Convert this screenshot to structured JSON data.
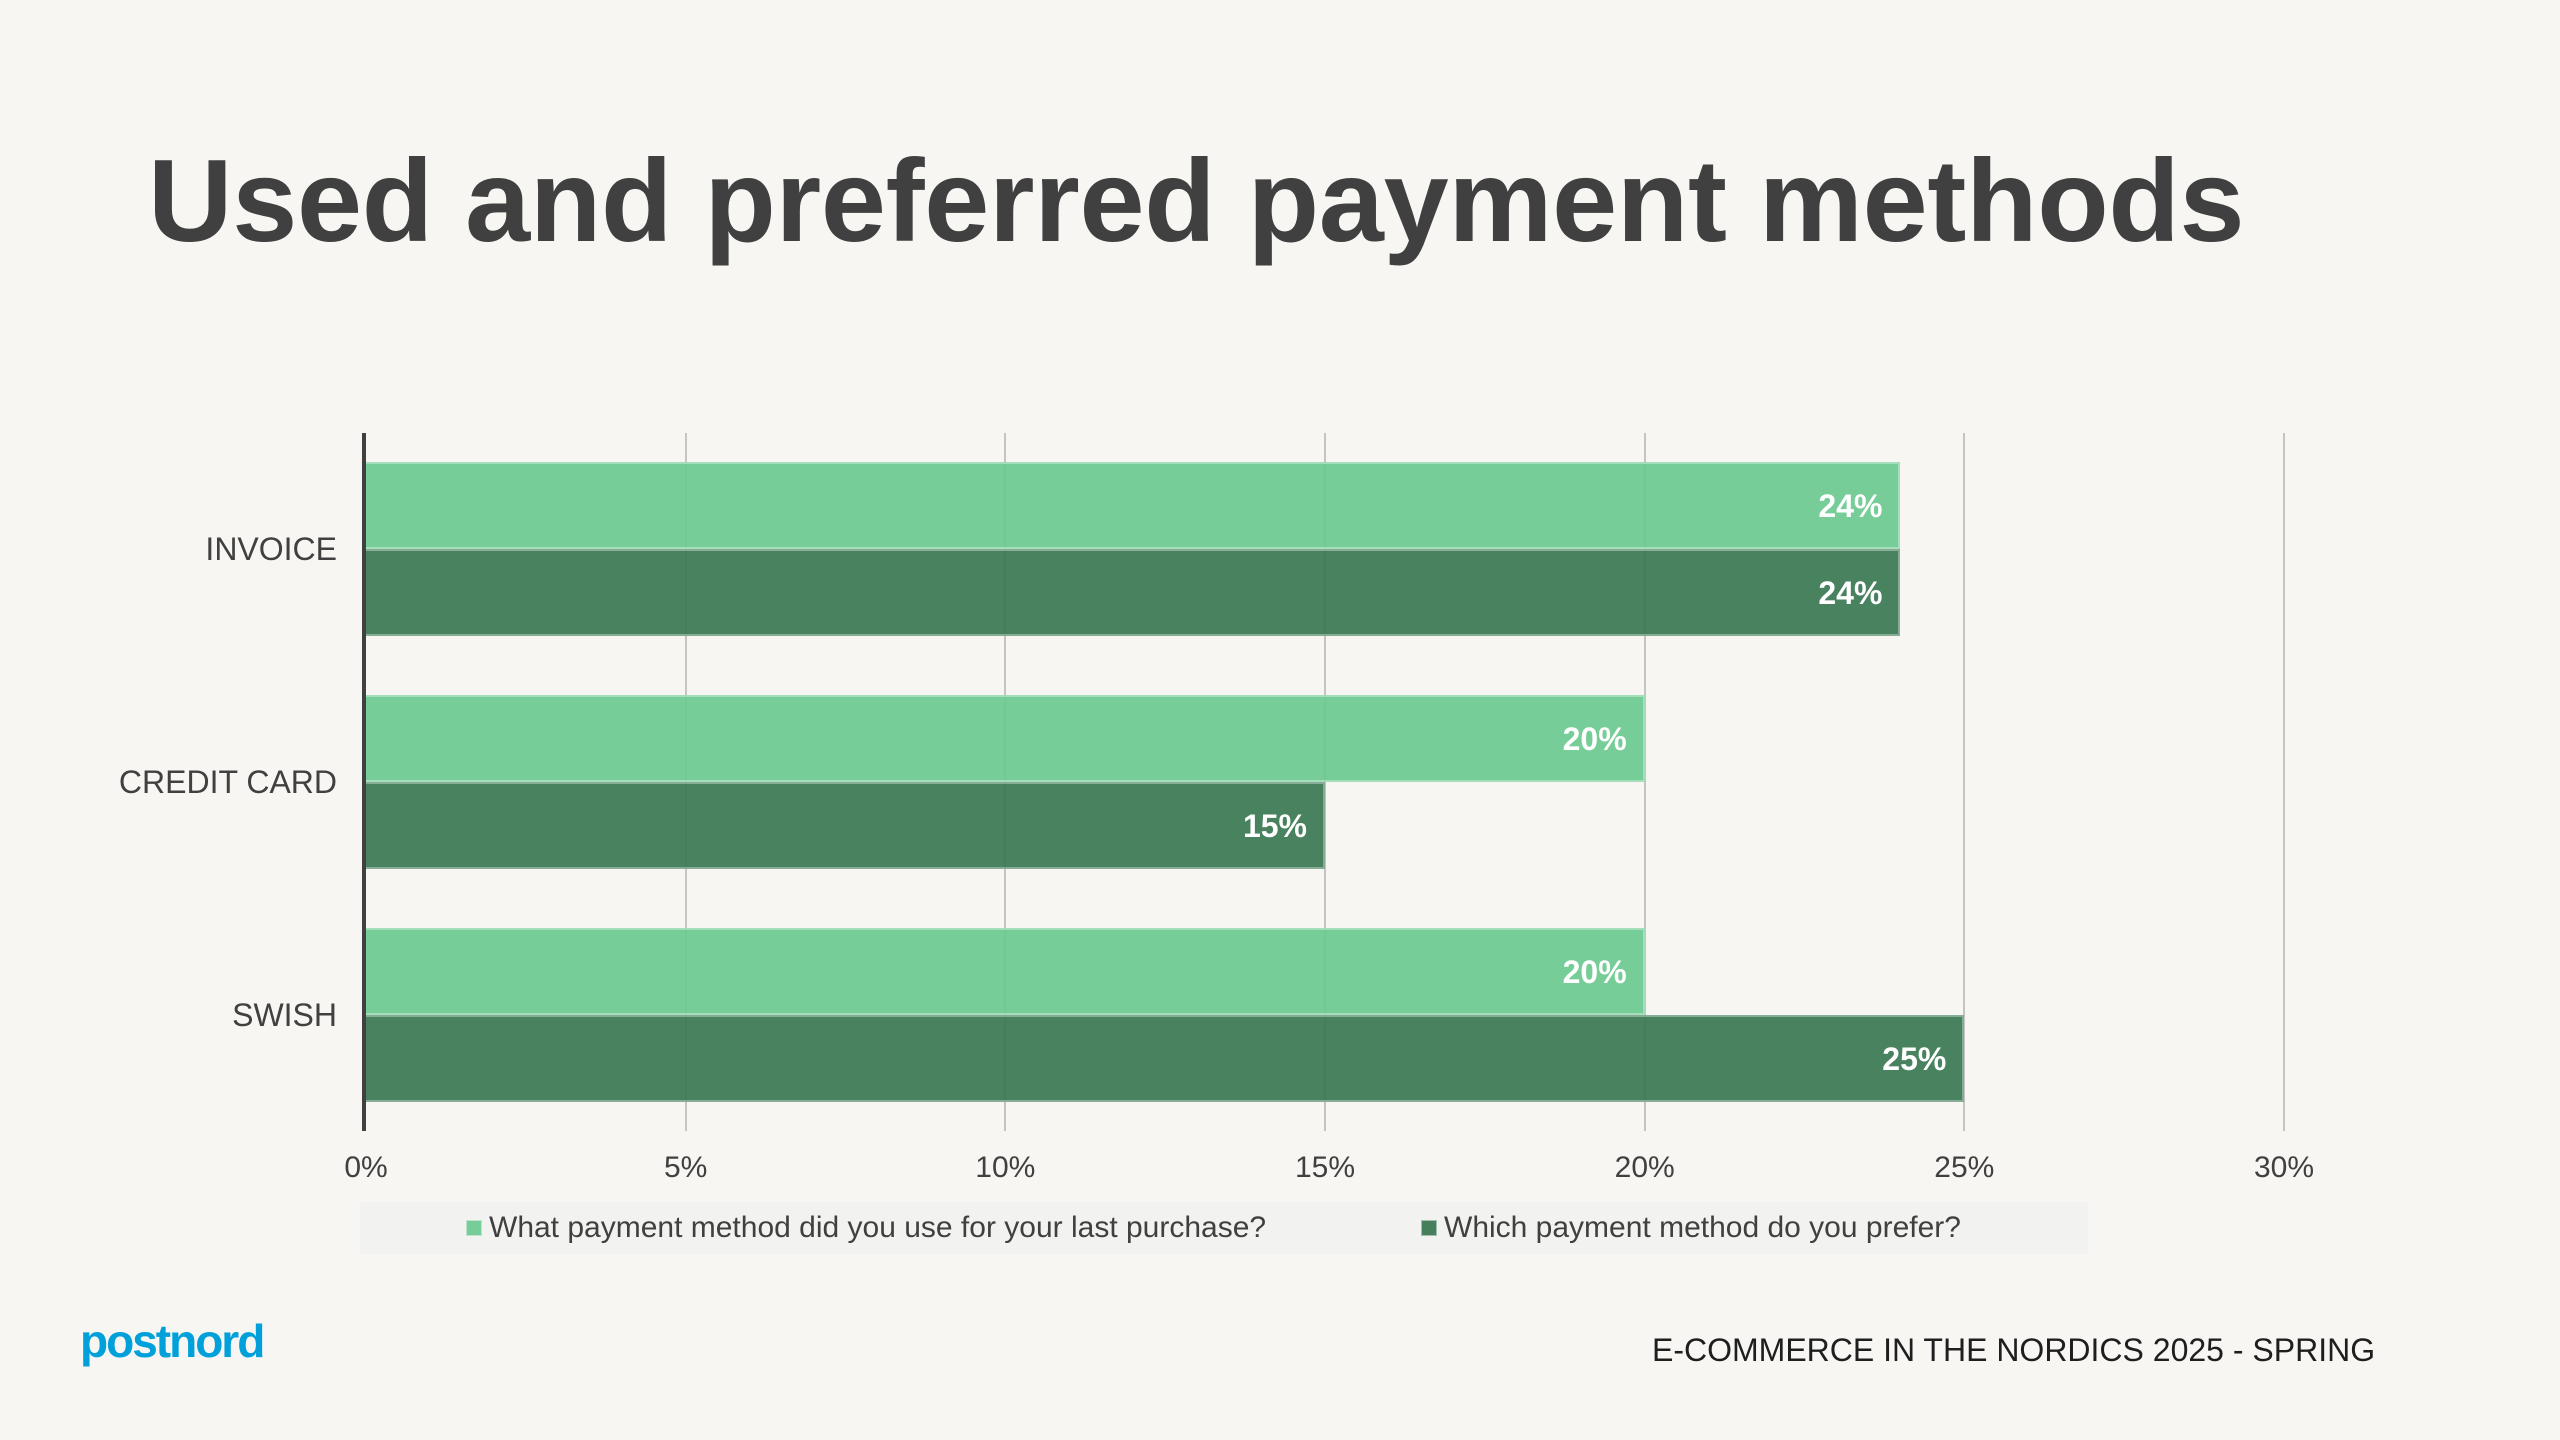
{
  "slide": {
    "title": "Used and preferred payment methods",
    "footer": "E-COMMERCE IN THE NORDICS 2025 - SPRING",
    "logo_text": "postnord",
    "colors": {
      "background": "#F7F6F3",
      "text": "#404040",
      "logo": "#00A0DA",
      "series_light": "#77CD97",
      "series_dark": "#467F5C"
    }
  },
  "chart_data": {
    "type": "bar",
    "orientation": "horizontal",
    "title": "Used and preferred payment methods",
    "xlabel": "",
    "ylabel": "",
    "categories": [
      "INVOICE",
      "CREDIT CARD",
      "SWISH"
    ],
    "series": [
      {
        "name": "What payment method did you use for your last purchase?",
        "color": "#77CD97",
        "values": [
          24,
          20,
          20
        ],
        "labels": [
          "24%",
          "20%",
          "20%"
        ]
      },
      {
        "name": "Which payment method do you prefer?",
        "color": "#467F5C",
        "values": [
          24,
          15,
          25
        ],
        "labels": [
          "24%",
          "15%",
          "25%"
        ]
      }
    ],
    "xlim": [
      0,
      30
    ],
    "x_ticks": [
      0,
      5,
      10,
      15,
      20,
      25,
      30
    ],
    "x_tick_labels": [
      "0%",
      "5%",
      "10%",
      "15%",
      "20%",
      "25%",
      "30%"
    ],
    "grid": "vertical",
    "legend_position": "bottom",
    "value_format": "percent"
  }
}
